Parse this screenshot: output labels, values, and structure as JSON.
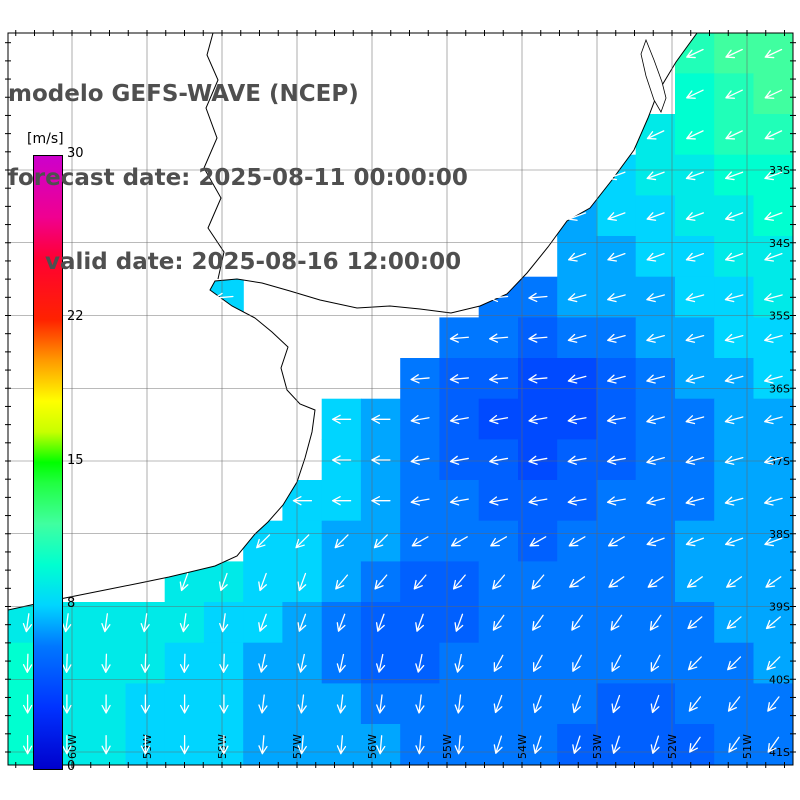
{
  "header": {
    "model_line": "modelo GEFS-WAVE (NCEP)",
    "forecast_line": "forecast date: 2025-08-11 00:00:00",
    "valid_line": "valid date: 2025-08-16 12:00:00"
  },
  "colorbar": {
    "unit_label": "[m/s]",
    "min": 0,
    "max": 30,
    "tick_values": [
      0,
      8,
      15,
      22,
      30
    ],
    "stops": [
      [
        0,
        "#0000cc"
      ],
      [
        3,
        "#0033ff"
      ],
      [
        6,
        "#0077ff"
      ],
      [
        8,
        "#00d5ff"
      ],
      [
        10,
        "#00ffd0"
      ],
      [
        12,
        "#40ffa0"
      ],
      [
        14,
        "#20ff40"
      ],
      [
        15,
        "#00ff00"
      ],
      [
        16.5,
        "#c8ff00"
      ],
      [
        18,
        "#ffff00"
      ],
      [
        20,
        "#ff9900"
      ],
      [
        22,
        "#ff2200"
      ],
      [
        25,
        "#ff0033"
      ],
      [
        27,
        "#f00090"
      ],
      [
        30,
        "#cc00cc"
      ]
    ]
  },
  "graticule": {
    "lat_labels": [
      "33S",
      "34S",
      "35S",
      "36S",
      "37S",
      "38S",
      "39S",
      "40S",
      "41S"
    ],
    "lon_labels": [
      "60W",
      "59W",
      "58W",
      "57W",
      "56W",
      "55W",
      "54W",
      "53W",
      "52W",
      "51W"
    ]
  },
  "chart_data": {
    "type": "heatmap",
    "units": "m/s",
    "rows": 18,
    "cols": 20,
    "speed": [
      [
        null,
        null,
        null,
        null,
        null,
        null,
        null,
        null,
        null,
        null,
        null,
        null,
        null,
        null,
        null,
        null,
        null,
        11,
        12,
        12
      ],
      [
        null,
        null,
        null,
        null,
        null,
        null,
        null,
        null,
        null,
        null,
        null,
        null,
        null,
        null,
        null,
        null,
        null,
        10,
        11,
        12
      ],
      [
        null,
        null,
        null,
        null,
        null,
        null,
        null,
        null,
        null,
        null,
        null,
        null,
        null,
        null,
        null,
        null,
        9,
        10,
        11,
        11
      ],
      [
        null,
        null,
        null,
        null,
        null,
        null,
        null,
        null,
        null,
        null,
        null,
        null,
        null,
        null,
        null,
        8,
        9,
        9,
        10,
        10
      ],
      [
        null,
        null,
        null,
        null,
        null,
        null,
        null,
        null,
        null,
        null,
        null,
        null,
        null,
        null,
        7,
        8,
        8,
        9,
        9,
        10
      ],
      [
        null,
        null,
        null,
        null,
        null,
        null,
        null,
        null,
        null,
        null,
        null,
        null,
        null,
        null,
        7,
        7,
        8,
        8,
        9,
        9
      ],
      [
        null,
        null,
        null,
        null,
        null,
        8,
        null,
        null,
        null,
        null,
        null,
        null,
        6,
        6,
        7,
        7,
        7,
        8,
        8,
        9
      ],
      [
        null,
        null,
        null,
        null,
        null,
        null,
        null,
        null,
        null,
        null,
        null,
        6,
        6,
        5,
        6,
        6,
        7,
        7,
        8,
        8
      ],
      [
        null,
        null,
        null,
        null,
        null,
        null,
        null,
        null,
        null,
        null,
        6,
        5,
        5,
        4,
        4,
        5,
        6,
        7,
        7,
        8
      ],
      [
        null,
        null,
        null,
        null,
        null,
        null,
        null,
        null,
        8,
        7,
        6,
        5,
        4,
        4,
        4,
        5,
        6,
        6,
        7,
        7
      ],
      [
        null,
        null,
        null,
        null,
        null,
        null,
        null,
        null,
        8,
        7,
        6,
        5,
        5,
        4,
        5,
        5,
        6,
        6,
        7,
        7
      ],
      [
        null,
        null,
        null,
        null,
        null,
        null,
        null,
        8,
        8,
        7,
        6,
        6,
        5,
        5,
        5,
        6,
        6,
        6,
        7,
        7
      ],
      [
        null,
        null,
        null,
        null,
        null,
        null,
        8,
        8,
        7,
        7,
        6,
        6,
        6,
        5,
        6,
        6,
        6,
        7,
        7,
        7
      ],
      [
        null,
        null,
        null,
        null,
        9,
        9,
        8,
        8,
        7,
        6,
        5,
        5,
        6,
        6,
        6,
        6,
        6,
        7,
        7,
        7
      ],
      [
        9,
        9,
        9,
        9,
        9,
        8,
        8,
        7,
        6,
        5,
        5,
        5,
        6,
        6,
        6,
        6,
        6,
        6,
        7,
        7
      ],
      [
        10,
        9,
        9,
        9,
        8,
        8,
        7,
        7,
        6,
        5,
        5,
        6,
        6,
        6,
        6,
        6,
        6,
        6,
        6,
        7
      ],
      [
        10,
        9,
        9,
        8,
        8,
        8,
        7,
        7,
        7,
        6,
        6,
        6,
        6,
        6,
        6,
        5,
        5,
        6,
        6,
        6
      ],
      [
        10,
        9,
        9,
        8,
        8,
        8,
        7,
        7,
        7,
        7,
        6,
        6,
        6,
        6,
        5,
        5,
        5,
        5,
        6,
        6
      ]
    ],
    "dir_deg": [
      [
        205,
        205,
        205,
        205,
        205,
        205,
        205,
        205,
        205,
        205,
        205,
        205,
        205,
        205,
        205,
        205,
        205,
        205,
        205,
        205
      ],
      [
        205,
        205,
        205,
        205,
        205,
        205,
        205,
        205,
        205,
        205,
        205,
        205,
        205,
        205,
        205,
        205,
        205,
        205,
        205,
        205
      ],
      [
        205,
        205,
        205,
        205,
        205,
        205,
        205,
        205,
        205,
        205,
        205,
        205,
        205,
        205,
        205,
        205,
        205,
        205,
        205,
        205
      ],
      [
        200,
        200,
        200,
        200,
        200,
        200,
        200,
        200,
        200,
        200,
        200,
        200,
        200,
        200,
        200,
        200,
        200,
        200,
        200,
        200
      ],
      [
        200,
        200,
        200,
        200,
        200,
        200,
        200,
        200,
        200,
        200,
        200,
        200,
        200,
        200,
        200,
        200,
        200,
        200,
        200,
        200
      ],
      [
        200,
        200,
        200,
        200,
        200,
        200,
        200,
        200,
        200,
        200,
        200,
        200,
        200,
        200,
        200,
        200,
        200,
        200,
        200,
        200
      ],
      [
        185,
        185,
        185,
        185,
        185,
        185,
        185,
        185,
        185,
        185,
        185,
        185,
        185,
        185,
        195,
        195,
        195,
        195,
        195,
        195
      ],
      [
        185,
        185,
        185,
        185,
        185,
        185,
        185,
        185,
        185,
        185,
        185,
        185,
        185,
        185,
        195,
        195,
        195,
        195,
        195,
        195
      ],
      [
        185,
        185,
        185,
        185,
        185,
        185,
        185,
        185,
        185,
        185,
        185,
        185,
        185,
        185,
        195,
        195,
        195,
        195,
        195,
        195
      ],
      [
        180,
        180,
        180,
        180,
        180,
        180,
        180,
        180,
        180,
        180,
        190,
        190,
        190,
        190,
        190,
        190,
        195,
        195,
        195,
        195
      ],
      [
        180,
        180,
        180,
        180,
        180,
        180,
        180,
        180,
        180,
        180,
        190,
        190,
        190,
        190,
        190,
        190,
        195,
        195,
        195,
        195
      ],
      [
        180,
        180,
        180,
        180,
        180,
        180,
        180,
        180,
        180,
        180,
        190,
        190,
        190,
        190,
        190,
        190,
        195,
        195,
        195,
        195
      ],
      [
        225,
        225,
        225,
        225,
        225,
        225,
        225,
        225,
        225,
        225,
        210,
        210,
        210,
        210,
        210,
        210,
        200,
        200,
        200,
        200
      ],
      [
        250,
        250,
        250,
        250,
        250,
        250,
        250,
        250,
        230,
        230,
        230,
        230,
        230,
        230,
        215,
        215,
        215,
        215,
        215,
        215
      ],
      [
        262,
        262,
        262,
        262,
        262,
        262,
        250,
        250,
        250,
        250,
        250,
        250,
        235,
        235,
        235,
        235,
        235,
        220,
        220,
        220
      ],
      [
        268,
        268,
        268,
        268,
        268,
        268,
        258,
        258,
        258,
        258,
        258,
        258,
        242,
        242,
        242,
        242,
        242,
        225,
        225,
        225
      ],
      [
        270,
        270,
        270,
        270,
        270,
        270,
        263,
        263,
        263,
        263,
        263,
        263,
        250,
        250,
        250,
        250,
        250,
        232,
        232,
        232
      ],
      [
        270,
        270,
        270,
        270,
        270,
        270,
        265,
        265,
        265,
        265,
        265,
        265,
        252,
        252,
        252,
        252,
        252,
        235,
        235,
        235
      ]
    ]
  }
}
